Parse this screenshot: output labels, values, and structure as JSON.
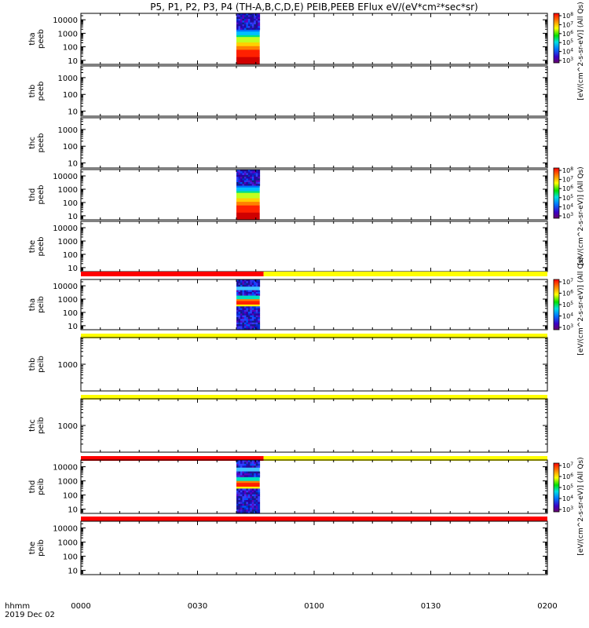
{
  "title": "P5, P1, P2, P3, P4 (TH-A,B,C,D,E) PEIB,PEEB EFlux eV/(eV*cm²*sec*sr)",
  "colorbar_side_labels": [
    "[eV/(cm^2-s-sr-eV)] (All Qs)",
    "[eV/(cm^2-s-sr-eV)] (All Qs)",
    "[eV/(cm^2-s-sr-eV)] (All Qs)",
    "[eV/(cm^2-s-sr-eV)] (All Qs)"
  ],
  "time_axis": {
    "corner_label_1": "hhmm",
    "corner_label_2": "2019 Dec 02",
    "tick_labels": [
      "0000",
      "0030",
      "0100",
      "0130",
      "0200"
    ]
  },
  "colors": {
    "flag_red": "#ff0000",
    "flag_yellow": "#ffff00"
  },
  "chart_data": [
    {
      "type": "heatmap",
      "panel": "tha peeb",
      "ylabel": "tha peeb",
      "y_log": true,
      "yticks": [
        "10",
        "100",
        "1000",
        "10000"
      ],
      "ylim": [
        5,
        30000
      ],
      "data_x_range_hhmm": [
        "0040",
        "0046"
      ],
      "colorbar": {
        "ticks": [
          "10^3",
          "10^4",
          "10^5",
          "10^6",
          "10^7",
          "10^8"
        ]
      }
    },
    {
      "type": "heatmap",
      "panel": "thb peeb",
      "ylabel": "thb peeb",
      "y_log": true,
      "yticks": [
        "10",
        "100",
        "1000"
      ],
      "ylim": [
        5,
        5000
      ],
      "data_x_range_hhmm": null
    },
    {
      "type": "heatmap",
      "panel": "thc peeb",
      "ylabel": "thc peeb",
      "y_log": true,
      "yticks": [
        "10",
        "100",
        "1000"
      ],
      "ylim": [
        5,
        5000
      ],
      "data_x_range_hhmm": null
    },
    {
      "type": "heatmap",
      "panel": "thd peeb",
      "ylabel": "thd peeb",
      "y_log": true,
      "yticks": [
        "10",
        "100",
        "1000",
        "10000"
      ],
      "ylim": [
        5,
        30000
      ],
      "data_x_range_hhmm": [
        "0040",
        "0046"
      ],
      "colorbar": {
        "ticks": [
          "10^3",
          "10^4",
          "10^5",
          "10^6",
          "10^7",
          "10^8"
        ]
      }
    },
    {
      "type": "heatmap",
      "panel": "the peeb",
      "ylabel": "the peeb",
      "y_log": true,
      "yticks": [
        "10",
        "100",
        "1000",
        "10000"
      ],
      "ylim": [
        5,
        30000
      ],
      "data_x_range_hhmm": null,
      "flag_bar": [
        {
          "from": "0000",
          "to": "0047",
          "color": "red"
        },
        {
          "from": "0047",
          "to": "0200",
          "color": "yellow"
        }
      ]
    },
    {
      "type": "heatmap",
      "panel": "tha peib",
      "ylabel": "tha peib",
      "y_log": true,
      "yticks": [
        "10",
        "100",
        "1000",
        "10000"
      ],
      "ylim": [
        5,
        30000
      ],
      "data_x_range_hhmm": [
        "0040",
        "0046"
      ],
      "colorbar": {
        "ticks": [
          "10^3",
          "10^4",
          "10^5",
          "10^6",
          "10^7"
        ]
      },
      "flag_bar": [
        {
          "from": "0000",
          "to": "0200",
          "color": "yellow"
        }
      ]
    },
    {
      "type": "heatmap",
      "panel": "thb peib",
      "ylabel": "thb peib",
      "y_log": true,
      "yticks": [
        "1000"
      ],
      "ylim": [
        100,
        10000
      ],
      "data_x_range_hhmm": null,
      "flag_bar": [
        {
          "from": "0000",
          "to": "0200",
          "color": "yellow"
        }
      ]
    },
    {
      "type": "heatmap",
      "panel": "thc peib",
      "ylabel": "thc peib",
      "y_log": true,
      "yticks": [
        "1000"
      ],
      "ylim": [
        100,
        10000
      ],
      "data_x_range_hhmm": null,
      "flag_bar": [
        {
          "from": "0000",
          "to": "0047",
          "color": "red"
        },
        {
          "from": "0047",
          "to": "0200",
          "color": "yellow"
        }
      ]
    },
    {
      "type": "heatmap",
      "panel": "thd peib",
      "ylabel": "thd peib",
      "y_log": true,
      "yticks": [
        "10",
        "100",
        "1000",
        "10000"
      ],
      "ylim": [
        5,
        30000
      ],
      "data_x_range_hhmm": [
        "0040",
        "0046"
      ],
      "colorbar": {
        "ticks": [
          "10^3",
          "10^4",
          "10^5",
          "10^6",
          "10^7"
        ]
      },
      "flag_bar": [
        {
          "from": "0000",
          "to": "0200",
          "color": "red"
        }
      ]
    },
    {
      "type": "heatmap",
      "panel": "the peib",
      "ylabel": "the peib",
      "y_log": true,
      "yticks": [
        "10",
        "100",
        "1000",
        "10000"
      ],
      "ylim": [
        5,
        30000
      ],
      "data_x_range_hhmm": null
    }
  ]
}
